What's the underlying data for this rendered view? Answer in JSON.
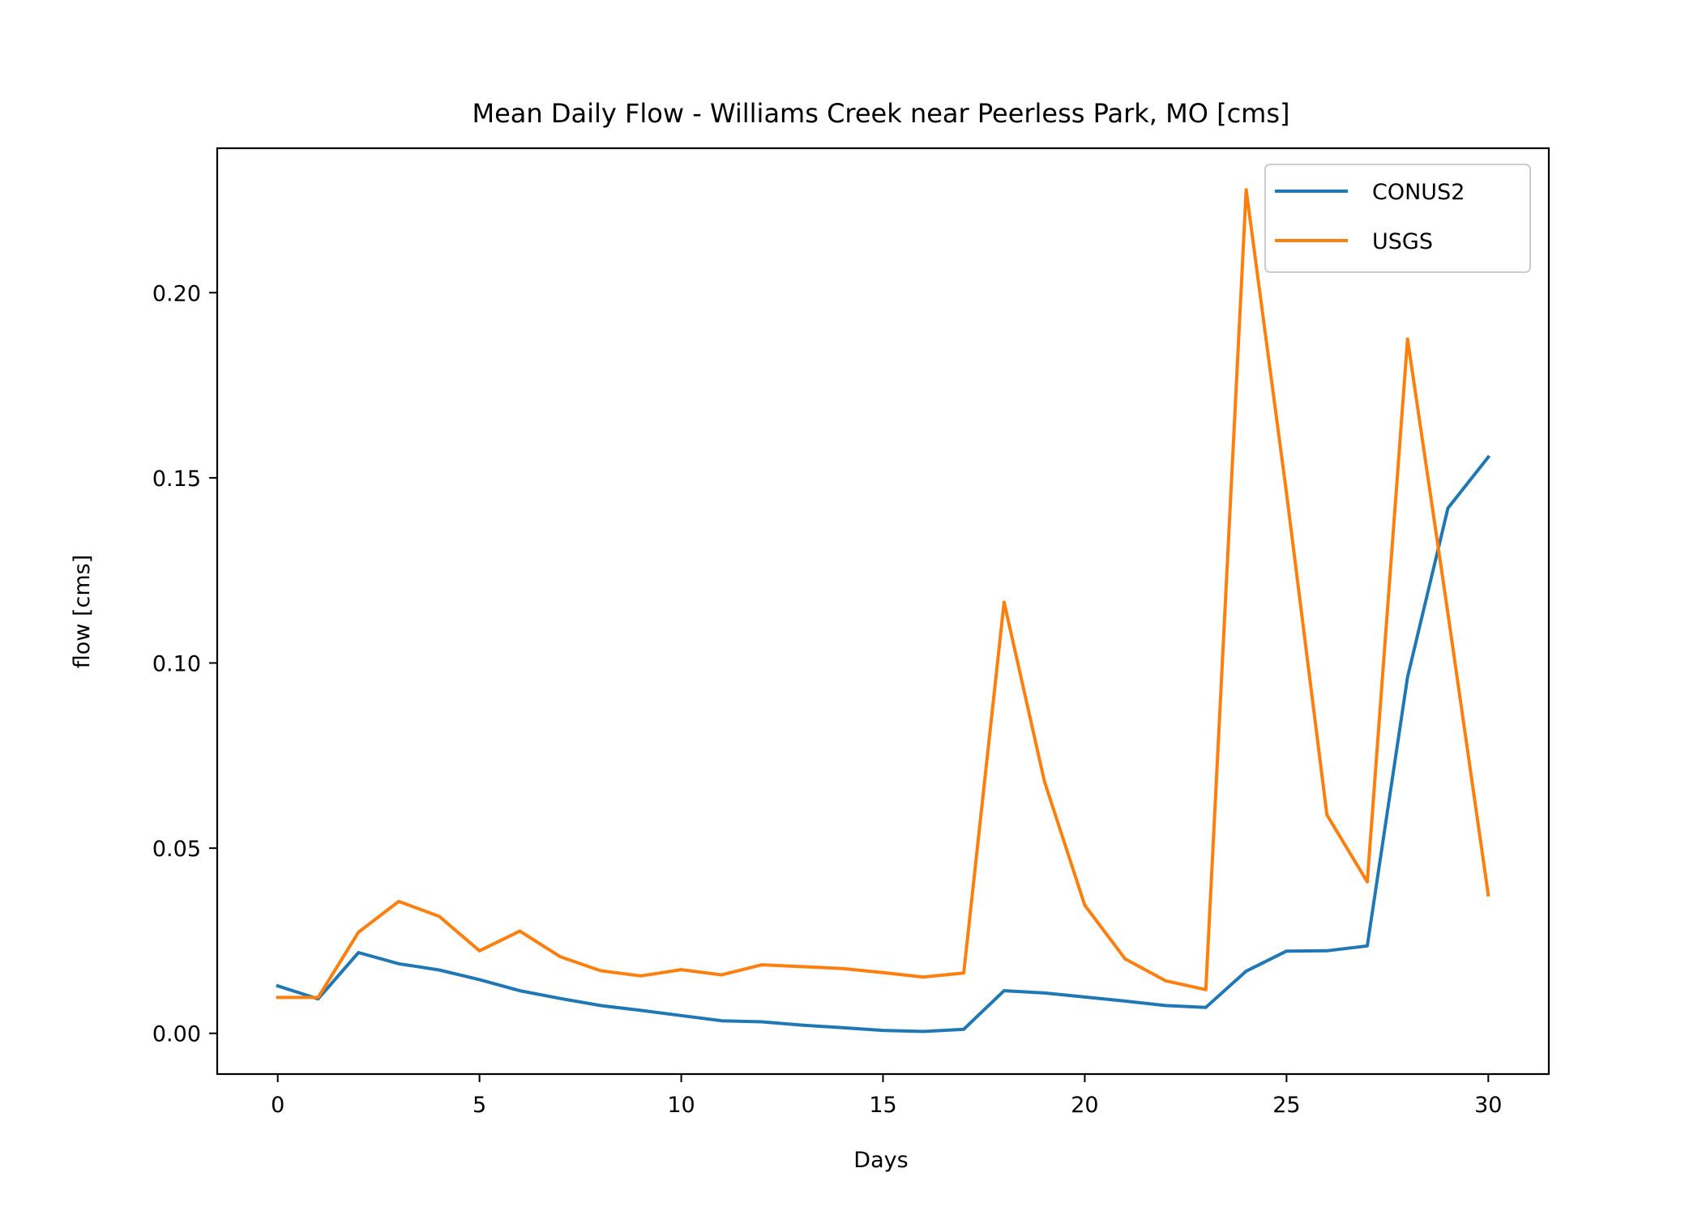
{
  "chart_data": {
    "type": "line",
    "title": "Mean Daily Flow - Williams Creek near Peerless Park, MO [cms]",
    "xlabel": "Days",
    "ylabel": "flow [cms]",
    "xlim": [
      -1.5,
      31.5
    ],
    "ylim": [
      -0.011,
      0.239
    ],
    "xticks": [
      0,
      5,
      10,
      15,
      20,
      25,
      30
    ],
    "xtick_labels": [
      "0",
      "5",
      "10",
      "15",
      "20",
      "25",
      "30"
    ],
    "yticks": [
      0.0,
      0.05,
      0.1,
      0.15,
      0.2
    ],
    "ytick_labels": [
      "0.00",
      "0.05",
      "0.10",
      "0.15",
      "0.20"
    ],
    "grid": false,
    "legend_position": "top-right",
    "x": [
      0,
      1,
      2,
      3,
      4,
      5,
      6,
      7,
      8,
      9,
      10,
      11,
      12,
      13,
      14,
      15,
      16,
      17,
      18,
      19,
      20,
      21,
      22,
      23,
      24,
      25,
      26,
      27,
      28,
      29,
      30
    ],
    "series": [
      {
        "name": "CONUS2",
        "color": "#1f77b4",
        "values": [
          0.0128,
          0.0093,
          0.0218,
          0.0188,
          0.0171,
          0.0145,
          0.0115,
          0.0094,
          0.0075,
          0.0062,
          0.0048,
          0.0034,
          0.0031,
          0.0022,
          0.0015,
          0.0008,
          0.0005,
          0.0011,
          0.0115,
          0.0109,
          0.0098,
          0.0087,
          0.0075,
          0.007,
          0.0168,
          0.0222,
          0.0223,
          0.0236,
          0.0962,
          0.1418,
          0.1556
        ]
      },
      {
        "name": "USGS",
        "color": "#ff7f0e",
        "values": [
          0.0097,
          0.0097,
          0.0273,
          0.0356,
          0.0316,
          0.0223,
          0.0276,
          0.0207,
          0.0169,
          0.0155,
          0.0172,
          0.0158,
          0.0185,
          0.018,
          0.0175,
          0.0164,
          0.0152,
          0.0163,
          0.1164,
          0.068,
          0.0346,
          0.0201,
          0.0142,
          0.0118,
          0.2278,
          0.1458,
          0.059,
          0.0409,
          0.1875,
          0.1134,
          0.0374
        ]
      }
    ]
  }
}
